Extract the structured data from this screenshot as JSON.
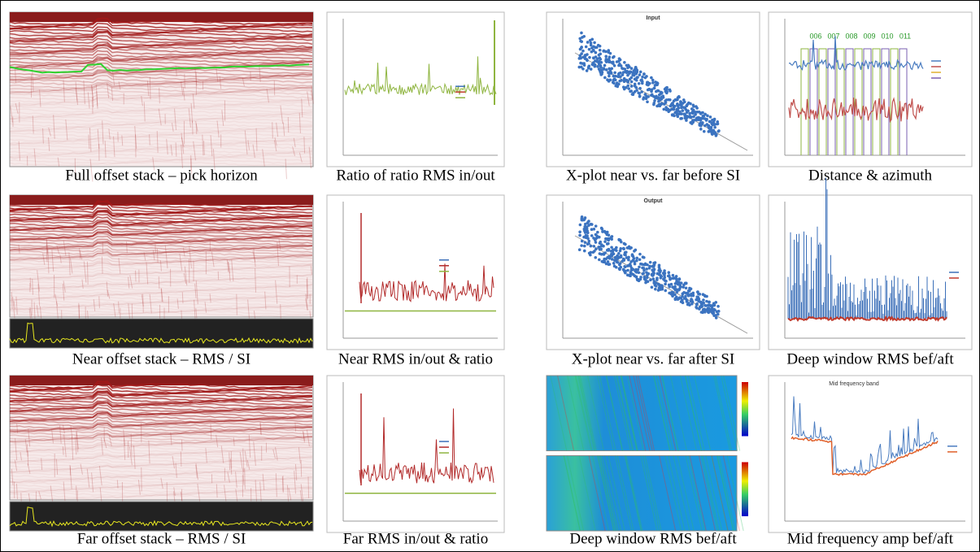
{
  "panels": [
    {
      "caption": "Full offset stack – pick horizon"
    },
    {
      "caption": "Ratio of ratio RMS in/out"
    },
    {
      "caption": "X-plot near vs. far before SI",
      "title": "Input"
    },
    {
      "caption": "Distance & azimuth",
      "labels": [
        "006",
        "007",
        "008",
        "009",
        "010",
        "011"
      ]
    },
    {
      "caption": "Near offset stack – RMS / SI"
    },
    {
      "caption": "Near RMS in/out & ratio"
    },
    {
      "caption": "X-plot near vs. far after SI",
      "title": "Output"
    },
    {
      "caption": "Deep window RMS bef/aft"
    },
    {
      "caption": "Far offset stack – RMS / SI"
    },
    {
      "caption": "Far RMS in/out & ratio"
    },
    {
      "caption": "Deep window RMS bef/aft"
    },
    {
      "caption": "Mid frequency amp bef/aft",
      "title": "Mid frequency band"
    }
  ]
}
